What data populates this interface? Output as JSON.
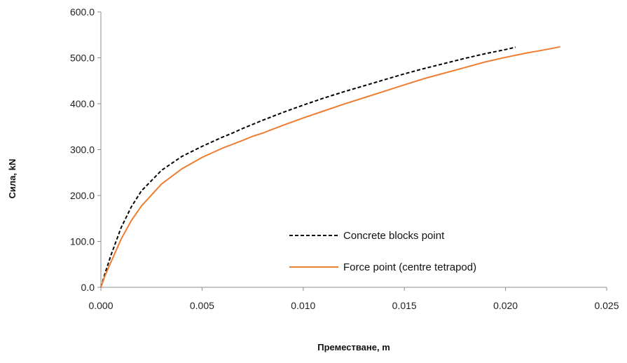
{
  "chart_data": {
    "type": "line",
    "title": "",
    "xlabel": "Преместване, m",
    "ylabel": "Сила, kN",
    "xlim": [
      0,
      0.025
    ],
    "ylim": [
      0,
      600
    ],
    "x_ticks": [
      "0.000",
      "0.005",
      "0.010",
      "0.015",
      "0.020",
      "0.025"
    ],
    "y_ticks": [
      "0.0",
      "100.0",
      "200.0",
      "300.0",
      "400.0",
      "500.0",
      "600.0"
    ],
    "grid": false,
    "legend_position": "bottom-right",
    "series": [
      {
        "name": "Concrete blocks point",
        "color": "#000000",
        "dash": "dashed",
        "x": [
          0,
          0.0002,
          0.0005,
          0.001,
          0.0015,
          0.002,
          0.003,
          0.004,
          0.005,
          0.006,
          0.0065,
          0.007,
          0.008,
          0.009,
          0.01,
          0.011,
          0.012,
          0.013,
          0.014,
          0.015,
          0.016,
          0.017,
          0.018,
          0.019,
          0.02,
          0.0205
        ],
        "y": [
          0,
          30,
          70,
          130,
          175,
          210,
          255,
          285,
          307,
          327,
          336,
          346,
          364,
          381,
          397,
          412,
          426,
          439,
          452,
          465,
          477,
          488,
          499,
          509,
          518,
          523
        ]
      },
      {
        "name": "Force point (centre tetrapod)",
        "color": "#ed7d31",
        "dash": "solid",
        "x": [
          0,
          0.0002,
          0.0005,
          0.001,
          0.0015,
          0.002,
          0.003,
          0.004,
          0.005,
          0.006,
          0.007,
          0.0075,
          0.008,
          0.009,
          0.01,
          0.011,
          0.012,
          0.013,
          0.014,
          0.015,
          0.016,
          0.017,
          0.018,
          0.019,
          0.02,
          0.021,
          0.022,
          0.0227
        ],
        "y": [
          0,
          25,
          55,
          105,
          145,
          177,
          225,
          258,
          283,
          303,
          320,
          329,
          336,
          353,
          369,
          384,
          399,
          413,
          427,
          441,
          455,
          467,
          479,
          491,
          501,
          510,
          518,
          524
        ]
      }
    ]
  }
}
